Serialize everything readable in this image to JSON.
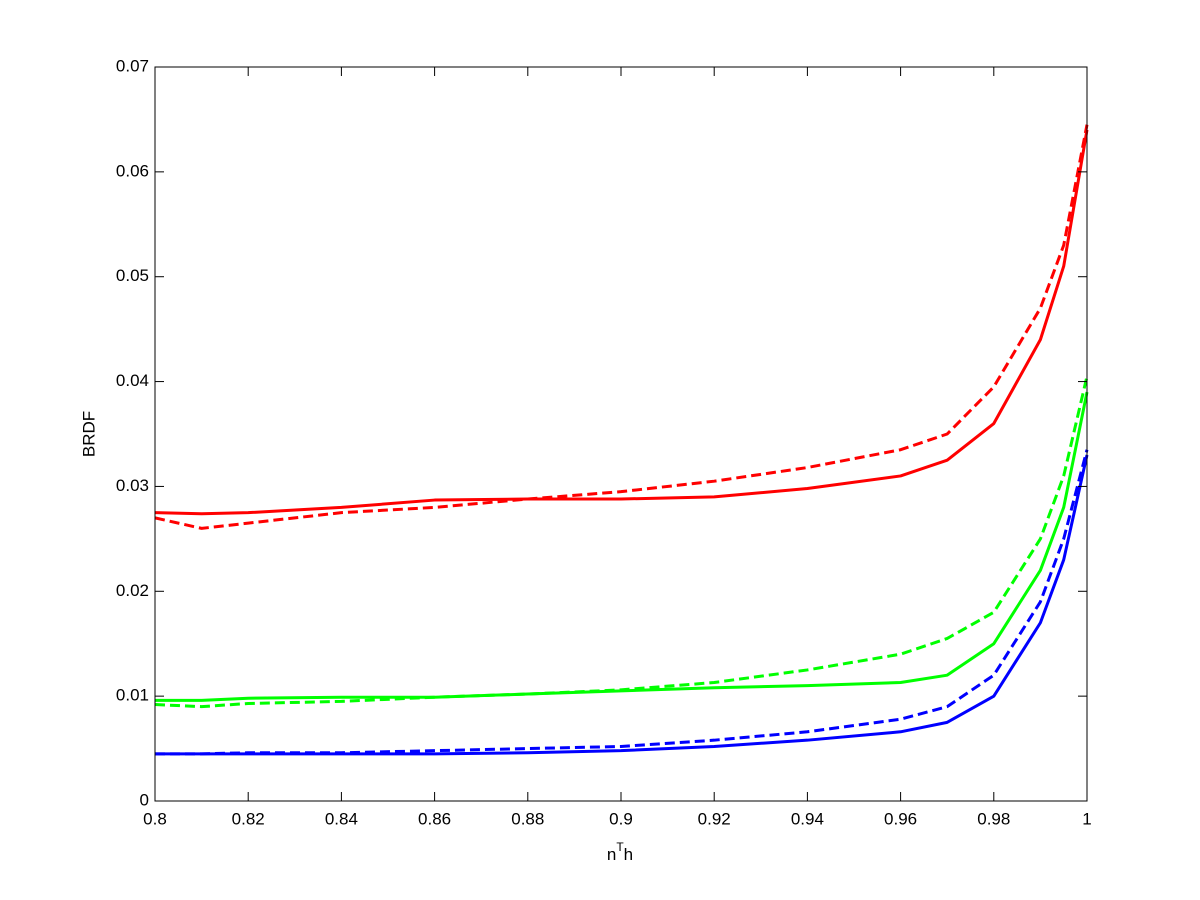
{
  "chart_data": {
    "type": "line",
    "ylabel": "BRDF",
    "xlabel_parts": [
      "n",
      "T",
      "h"
    ],
    "x": [
      0.8,
      0.81,
      0.82,
      0.84,
      0.86,
      0.88,
      0.9,
      0.92,
      0.94,
      0.96,
      0.97,
      0.98,
      0.99,
      0.995,
      1
    ],
    "series": [
      {
        "color": "#ff0000",
        "dashed": false,
        "values": [
          0.0275,
          0.0274,
          0.0275,
          0.028,
          0.0287,
          0.0288,
          0.0288,
          0.029,
          0.0298,
          0.031,
          0.0325,
          0.036,
          0.044,
          0.051,
          0.064
        ]
      },
      {
        "color": "#ff0000",
        "dashed": true,
        "values": [
          0.027,
          0.026,
          0.0265,
          0.0275,
          0.028,
          0.0288,
          0.0295,
          0.0305,
          0.0318,
          0.0335,
          0.035,
          0.0395,
          0.047,
          0.053,
          0.0645
        ]
      },
      {
        "color": "#00ff00",
        "dashed": false,
        "values": [
          0.0096,
          0.0096,
          0.0098,
          0.0099,
          0.0099,
          0.0102,
          0.0105,
          0.0108,
          0.011,
          0.0113,
          0.012,
          0.015,
          0.022,
          0.028,
          0.039
        ]
      },
      {
        "color": "#00ff00",
        "dashed": true,
        "values": [
          0.0092,
          0.009,
          0.0093,
          0.0095,
          0.0099,
          0.0102,
          0.0106,
          0.0113,
          0.0125,
          0.014,
          0.0155,
          0.018,
          0.025,
          0.031,
          0.0405
        ]
      },
      {
        "color": "#0000ff",
        "dashed": false,
        "values": [
          0.0045,
          0.0045,
          0.0045,
          0.0045,
          0.0045,
          0.0046,
          0.0048,
          0.0052,
          0.0058,
          0.0066,
          0.0075,
          0.01,
          0.017,
          0.023,
          0.033
        ]
      },
      {
        "color": "#0000ff",
        "dashed": true,
        "values": [
          0.0045,
          0.0045,
          0.0046,
          0.0046,
          0.0048,
          0.005,
          0.0052,
          0.0058,
          0.0066,
          0.0078,
          0.009,
          0.012,
          0.019,
          0.025,
          0.0335
        ]
      }
    ],
    "xlim": [
      0.8,
      1
    ],
    "xticks": [
      0.8,
      0.82,
      0.84,
      0.86,
      0.88,
      0.9,
      0.92,
      0.94,
      0.96,
      0.98,
      1
    ],
    "ylim": [
      0,
      0.07
    ],
    "yticks": [
      0,
      0.01,
      0.02,
      0.03,
      0.04,
      0.05,
      0.06,
      0.07
    ],
    "grid": false
  }
}
